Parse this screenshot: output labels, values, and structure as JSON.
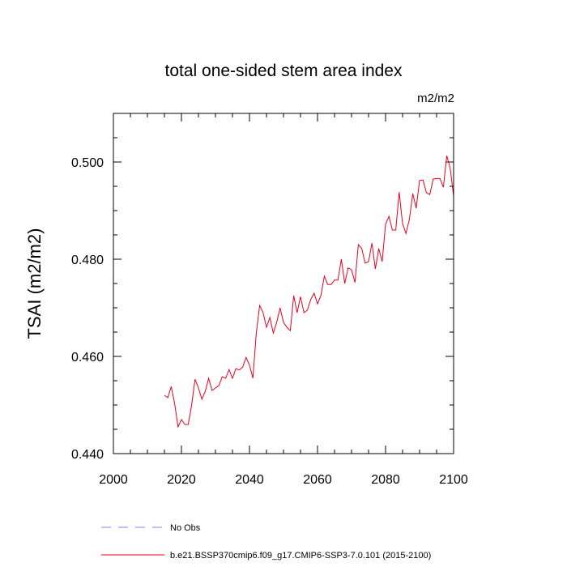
{
  "chart_data": {
    "type": "line",
    "title": "total one-sided stem area index",
    "units": "m2/m2",
    "xlabel": "",
    "ylabel": "TSAI  (m2/m2)",
    "xlim": [
      2000,
      2100
    ],
    "ylim": [
      0.44,
      0.51
    ],
    "x_ticks": [
      2000,
      2020,
      2040,
      2060,
      2080,
      2100
    ],
    "x_tick_labels": [
      "2000",
      "2020",
      "2040",
      "2060",
      "2080",
      "2100"
    ],
    "y_ticks": [
      0.44,
      0.46,
      0.48,
      0.5
    ],
    "y_tick_labels": [
      "0.440",
      "0.460",
      "0.480",
      "0.500"
    ],
    "grid": false,
    "legend_position": "bottom",
    "series": [
      {
        "name": "No Obs",
        "color": "#8080ff",
        "style": "dashed",
        "x": [],
        "values": []
      },
      {
        "name": "b.e21.BSSP370cmip6.f09_g17.CMIP6-SSP3-7.0.101 (2015-2100)",
        "color": "#e8001c",
        "style": "solid",
        "x": [
          2015,
          2016,
          2017,
          2018,
          2019,
          2020,
          2021,
          2022,
          2023,
          2024,
          2025,
          2026,
          2027,
          2028,
          2029,
          2030,
          2031,
          2032,
          2033,
          2034,
          2035,
          2036,
          2037,
          2038,
          2039,
          2040,
          2041,
          2042,
          2043,
          2044,
          2045,
          2046,
          2047,
          2048,
          2049,
          2050,
          2051,
          2052,
          2053,
          2054,
          2055,
          2056,
          2057,
          2058,
          2059,
          2060,
          2061,
          2062,
          2063,
          2064,
          2065,
          2066,
          2067,
          2068,
          2069,
          2070,
          2071,
          2072,
          2073,
          2074,
          2075,
          2076,
          2077,
          2078,
          2079,
          2080,
          2081,
          2082,
          2083,
          2084,
          2085,
          2086,
          2087,
          2088,
          2089,
          2090,
          2091,
          2092,
          2093,
          2094,
          2095,
          2096,
          2097,
          2098,
          2099,
          2100
        ],
        "values": [
          0.452,
          0.4515,
          0.4538,
          0.4503,
          0.4455,
          0.447,
          0.446,
          0.446,
          0.45,
          0.4553,
          0.4535,
          0.4512,
          0.4528,
          0.4555,
          0.453,
          0.4535,
          0.454,
          0.4558,
          0.4555,
          0.4573,
          0.4555,
          0.4575,
          0.4572,
          0.4578,
          0.4598,
          0.4582,
          0.4555,
          0.4648,
          0.4705,
          0.469,
          0.466,
          0.468,
          0.4648,
          0.467,
          0.47,
          0.467,
          0.466,
          0.4653,
          0.4725,
          0.469,
          0.4723,
          0.469,
          0.4695,
          0.4717,
          0.473,
          0.4708,
          0.4725,
          0.4765,
          0.4748,
          0.4748,
          0.4757,
          0.4757,
          0.48,
          0.475,
          0.4782,
          0.4778,
          0.4752,
          0.483,
          0.4822,
          0.4792,
          0.4795,
          0.4833,
          0.478,
          0.4822,
          0.4795,
          0.4872,
          0.4888,
          0.486,
          0.486,
          0.4938,
          0.4873,
          0.4853,
          0.4882,
          0.4935,
          0.4905,
          0.4962,
          0.4963,
          0.4937,
          0.4933,
          0.4965,
          0.4966,
          0.4966,
          0.4948,
          0.5013,
          0.4987,
          0.493
        ]
      }
    ]
  }
}
